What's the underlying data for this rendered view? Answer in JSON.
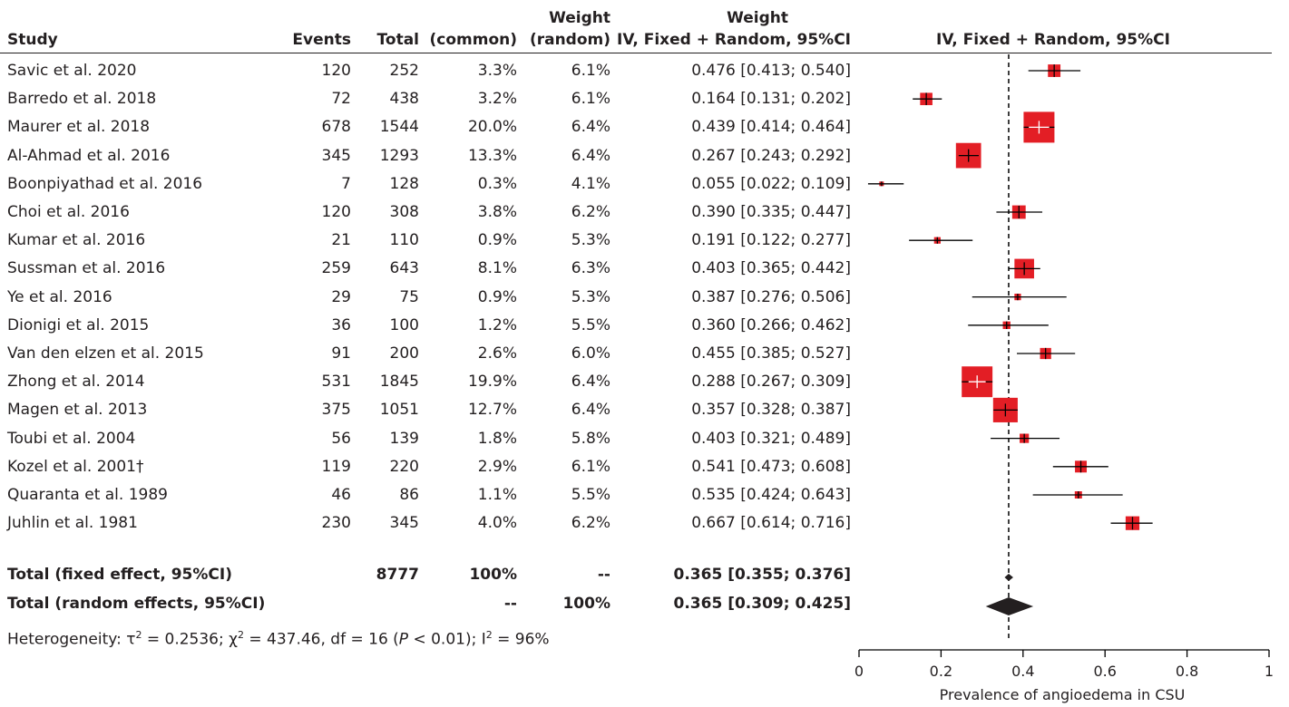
{
  "headers": {
    "study": "Study",
    "events": "Events",
    "total": "Total",
    "weight_common_top": "Weight",
    "weight_common_bottom": "(common)",
    "weight_random_top": "Weight",
    "weight_random_bottom": "(random)",
    "ci_col": "IV, Fixed + Random, 95%CI",
    "plot_col": "IV, Fixed + Random, 95%CI"
  },
  "studies": [
    {
      "study": "Savic et al. 2020",
      "events": "120",
      "total": "252",
      "w_common": "3.3%",
      "w_random": "6.1%",
      "ci_text": "0.476 [0.413; 0.540]"
    },
    {
      "study": "Barredo et al. 2018",
      "events": "72",
      "total": "438",
      "w_common": "3.2%",
      "w_random": "6.1%",
      "ci_text": "0.164 [0.131; 0.202]"
    },
    {
      "study": "Maurer et al. 2018",
      "events": "678",
      "total": "1544",
      "w_common": "20.0%",
      "w_random": "6.4%",
      "ci_text": "0.439 [0.414; 0.464]"
    },
    {
      "study": "Al-Ahmad et al. 2016",
      "events": "345",
      "total": "1293",
      "w_common": "13.3%",
      "w_random": "6.4%",
      "ci_text": "0.267 [0.243; 0.292]"
    },
    {
      "study": "Boonpiyathad et al. 2016",
      "events": "7",
      "total": "128",
      "w_common": "0.3%",
      "w_random": "4.1%",
      "ci_text": "0.055 [0.022; 0.109]"
    },
    {
      "study": "Choi et al. 2016",
      "events": "120",
      "total": "308",
      "w_common": "3.8%",
      "w_random": "6.2%",
      "ci_text": "0.390 [0.335; 0.447]"
    },
    {
      "study": "Kumar et al. 2016",
      "events": "21",
      "total": "110",
      "w_common": "0.9%",
      "w_random": "5.3%",
      "ci_text": "0.191 [0.122; 0.277]"
    },
    {
      "study": "Sussman et al. 2016",
      "events": "259",
      "total": "643",
      "w_common": "8.1%",
      "w_random": "6.3%",
      "ci_text": "0.403 [0.365; 0.442]"
    },
    {
      "study": "Ye et al. 2016",
      "events": "29",
      "total": "75",
      "w_common": "0.9%",
      "w_random": "5.3%",
      "ci_text": "0.387 [0.276; 0.506]"
    },
    {
      "study": "Dionigi et al. 2015",
      "events": "36",
      "total": "100",
      "w_common": "1.2%",
      "w_random": "5.5%",
      "ci_text": "0.360 [0.266; 0.462]"
    },
    {
      "study": "Van den elzen et al. 2015",
      "events": "91",
      "total": "200",
      "w_common": "2.6%",
      "w_random": "6.0%",
      "ci_text": "0.455 [0.385; 0.527]"
    },
    {
      "study": "Zhong et al. 2014",
      "events": "531",
      "total": "1845",
      "w_common": "19.9%",
      "w_random": "6.4%",
      "ci_text": "0.288 [0.267; 0.309]"
    },
    {
      "study": "Magen et al. 2013",
      "events": "375",
      "total": "1051",
      "w_common": "12.7%",
      "w_random": "6.4%",
      "ci_text": "0.357 [0.328; 0.387]"
    },
    {
      "study": "Toubi et al. 2004",
      "events": "56",
      "total": "139",
      "w_common": "1.8%",
      "w_random": "5.8%",
      "ci_text": "0.403 [0.321; 0.489]"
    },
    {
      "study": "Kozel et al. 2001†",
      "events": "119",
      "total": "220",
      "w_common": "2.9%",
      "w_random": "6.1%",
      "ci_text": "0.541 [0.473; 0.608]"
    },
    {
      "study": "Quaranta et al. 1989",
      "events": "46",
      "total": "86",
      "w_common": "1.1%",
      "w_random": "5.5%",
      "ci_text": "0.535 [0.424; 0.643]"
    },
    {
      "study": "Juhlin et al. 1981",
      "events": "230",
      "total": "345",
      "w_common": "4.0%",
      "w_random": "6.2%",
      "ci_text": "0.667 [0.614; 0.716]"
    }
  ],
  "totals": [
    {
      "label": "Total (fixed effect, 95%CI)",
      "events": "",
      "total": "8777",
      "w_common": "100%",
      "w_random": "--",
      "ci_text": "0.365 [0.355; 0.376]"
    },
    {
      "label": "Total (random effects, 95%CI)",
      "events": "",
      "total": "",
      "w_common": "--",
      "w_random": "100%",
      "ci_text": "0.365 [0.309; 0.425]"
    }
  ],
  "heterogeneity": {
    "prefix": "Heterogeneity: τ",
    "sup1": "2",
    "part2": " = 0.2536; χ",
    "sup2": "2",
    "part3": " = 437.46, df = 16 (",
    "p_italic": "P",
    "part4": " < 0.01); I",
    "sup3": "2",
    "part5": " = 96%"
  },
  "chart_data": {
    "type": "forest",
    "xlabel": "Prevalence of angioedema in CSU",
    "xlim": [
      0,
      1
    ],
    "ticks": [
      0,
      0.2,
      0.4,
      0.6,
      0.8,
      1
    ],
    "tick_labels": [
      "0",
      "0.2",
      "0.4",
      "0.6",
      "0.8",
      "1"
    ],
    "reference_line": 0.365,
    "colors": {
      "box": "#e31e25",
      "line": "#000000",
      "diamond": "#231f20"
    },
    "studies": [
      {
        "name": "Savic et al. 2020",
        "est": 0.476,
        "lo": 0.413,
        "hi": 0.54,
        "weight_common": 3.3
      },
      {
        "name": "Barredo et al. 2018",
        "est": 0.164,
        "lo": 0.131,
        "hi": 0.202,
        "weight_common": 3.2
      },
      {
        "name": "Maurer et al. 2018",
        "est": 0.439,
        "lo": 0.414,
        "hi": 0.464,
        "weight_common": 20.0
      },
      {
        "name": "Al-Ahmad et al. 2016",
        "est": 0.267,
        "lo": 0.243,
        "hi": 0.292,
        "weight_common": 13.3
      },
      {
        "name": "Boonpiyathad et al. 2016",
        "est": 0.055,
        "lo": 0.022,
        "hi": 0.109,
        "weight_common": 0.3
      },
      {
        "name": "Choi et al. 2016",
        "est": 0.39,
        "lo": 0.335,
        "hi": 0.447,
        "weight_common": 3.8
      },
      {
        "name": "Kumar et al. 2016",
        "est": 0.191,
        "lo": 0.122,
        "hi": 0.277,
        "weight_common": 0.9
      },
      {
        "name": "Sussman et al. 2016",
        "est": 0.403,
        "lo": 0.365,
        "hi": 0.442,
        "weight_common": 8.1
      },
      {
        "name": "Ye et al. 2016",
        "est": 0.387,
        "lo": 0.276,
        "hi": 0.506,
        "weight_common": 0.9
      },
      {
        "name": "Dionigi et al. 2015",
        "est": 0.36,
        "lo": 0.266,
        "hi": 0.462,
        "weight_common": 1.2
      },
      {
        "name": "Van den elzen et al. 2015",
        "est": 0.455,
        "lo": 0.385,
        "hi": 0.527,
        "weight_common": 2.6
      },
      {
        "name": "Zhong et al. 2014",
        "est": 0.288,
        "lo": 0.267,
        "hi": 0.309,
        "weight_common": 19.9
      },
      {
        "name": "Magen et al. 2013",
        "est": 0.357,
        "lo": 0.328,
        "hi": 0.387,
        "weight_common": 12.7
      },
      {
        "name": "Toubi et al. 2004",
        "est": 0.403,
        "lo": 0.321,
        "hi": 0.489,
        "weight_common": 1.8
      },
      {
        "name": "Kozel et al. 2001†",
        "est": 0.541,
        "lo": 0.473,
        "hi": 0.608,
        "weight_common": 2.9
      },
      {
        "name": "Quaranta et al. 1989",
        "est": 0.535,
        "lo": 0.424,
        "hi": 0.643,
        "weight_common": 1.1
      },
      {
        "name": "Juhlin et al. 1981",
        "est": 0.667,
        "lo": 0.614,
        "hi": 0.716,
        "weight_common": 4.0
      }
    ],
    "summaries": [
      {
        "name": "Total (fixed effect, 95%CI)",
        "est": 0.365,
        "lo": 0.355,
        "hi": 0.376
      },
      {
        "name": "Total (random effects, 95%CI)",
        "est": 0.365,
        "lo": 0.309,
        "hi": 0.425
      }
    ]
  }
}
